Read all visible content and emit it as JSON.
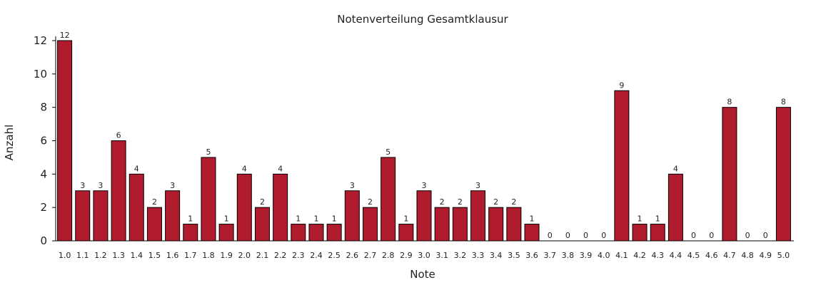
{
  "chart_data": {
    "type": "bar",
    "title": "Notenverteilung Gesamtklausur",
    "xlabel": "Note",
    "ylabel": "Anzahl",
    "ylim": [
      0,
      12
    ],
    "yticks": [
      "0",
      "2",
      "4",
      "6",
      "8",
      "10",
      "12"
    ],
    "grid": false,
    "bar_color": "#B01C2E",
    "categories": [
      "1.0",
      "1.1",
      "1.2",
      "1.3",
      "1.4",
      "1.5",
      "1.6",
      "1.7",
      "1.8",
      "1.9",
      "2.0",
      "2.1",
      "2.2",
      "2.3",
      "2.4",
      "2.5",
      "2.6",
      "2.7",
      "2.8",
      "2.9",
      "3.0",
      "3.1",
      "3.2",
      "3.3",
      "3.4",
      "3.5",
      "3.6",
      "3.7",
      "3.8",
      "3.9",
      "4.0",
      "4.1",
      "4.2",
      "4.3",
      "4.4",
      "4.5",
      "4.6",
      "4.7",
      "4.8",
      "4.9",
      "5.0"
    ],
    "values": [
      12,
      3,
      3,
      6,
      4,
      2,
      3,
      1,
      5,
      1,
      4,
      2,
      4,
      1,
      1,
      1,
      3,
      2,
      5,
      1,
      3,
      2,
      2,
      3,
      2,
      2,
      1,
      0,
      0,
      0,
      0,
      9,
      1,
      1,
      4,
      0,
      0,
      8,
      0,
      0,
      8
    ]
  }
}
